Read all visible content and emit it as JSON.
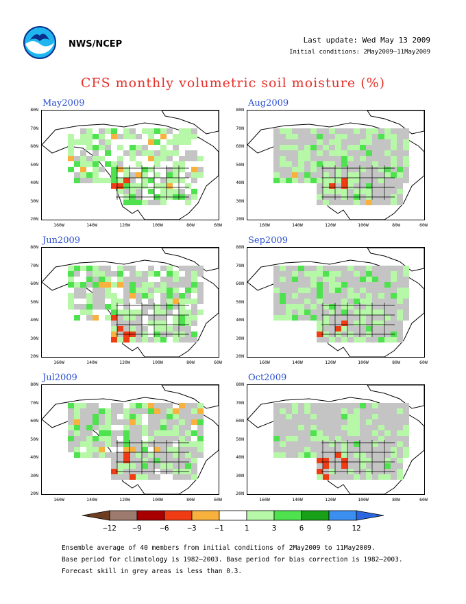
{
  "header": {
    "org": "NWS/NCEP",
    "last_update": "Last update: Wed May 13 2009",
    "initial_conditions": "Initial conditions: 2May2009–11May2009",
    "title": "CFS monthly volumetric soil moisture (%)"
  },
  "panels": [
    {
      "month": "May2009",
      "grey": 0.15
    },
    {
      "month": "Aug2009",
      "grey": 0.55
    },
    {
      "month": "Jun2009",
      "grey": 0.35
    },
    {
      "month": "Sep2009",
      "grey": 0.6
    },
    {
      "month": "Jul2009",
      "grey": 0.45
    },
    {
      "month": "Oct2009",
      "grey": 0.65
    }
  ],
  "lat_labels": [
    "80N",
    "70N",
    "60N",
    "50N",
    "40N",
    "30N",
    "20N"
  ],
  "lon_labels": [
    "160W",
    "140W",
    "120W",
    "100W",
    "80W",
    "60W"
  ],
  "legend": {
    "colors": [
      "#6e3e22",
      "#9c7a6e",
      "#a80000",
      "#f03c14",
      "#f7b13c",
      "#ffffff",
      "#b7f7a8",
      "#4fe24f",
      "#18a018",
      "#3b8ff0",
      "#2b66e0"
    ],
    "labels": [
      "−12",
      "−9",
      "−6",
      "−3",
      "−1",
      "1",
      "3",
      "6",
      "9",
      "12"
    ]
  },
  "footnote": {
    "line1": "Ensemble average of 40 members from initial conditions of 2May2009 to 11May2009.",
    "line2": "Base period for climatology is 1982–2003. Base period for bias correction is 1982–2003.",
    "line3": "Forecast skill in grey areas is less than 0.3."
  }
}
